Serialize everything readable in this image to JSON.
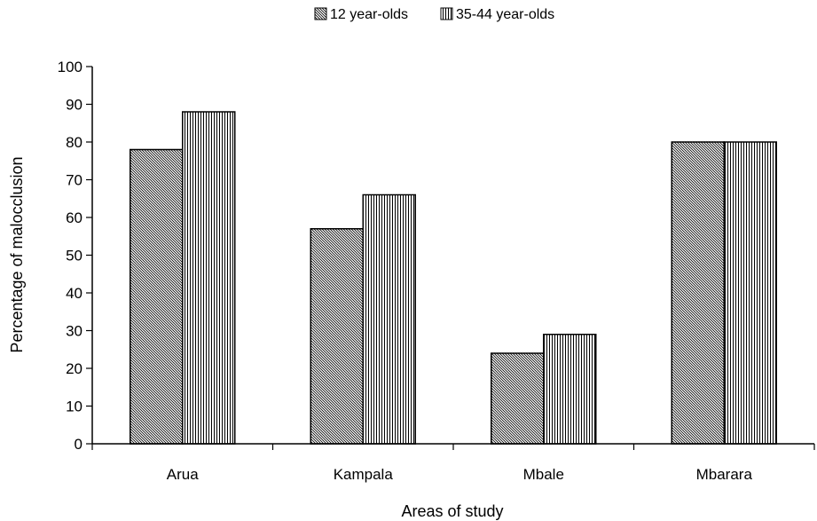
{
  "chart_data": {
    "type": "bar",
    "title": "",
    "xlabel": "Areas of study",
    "ylabel": "Percentage of malocclusion",
    "categories": [
      "Arua",
      "Kampala",
      "Mbale",
      "Mbarara"
    ],
    "series": [
      {
        "name": "12 year-olds",
        "values": [
          78,
          57,
          24,
          80
        ]
      },
      {
        "name": "35-44 year-olds",
        "values": [
          88,
          66,
          29,
          80
        ]
      }
    ],
    "ylim": [
      0,
      100
    ],
    "yticks": [
      "0",
      "10",
      "20",
      "30",
      "40",
      "50",
      "60",
      "70",
      "80",
      "90",
      "100"
    ],
    "grid": false,
    "legend_position": "top"
  }
}
